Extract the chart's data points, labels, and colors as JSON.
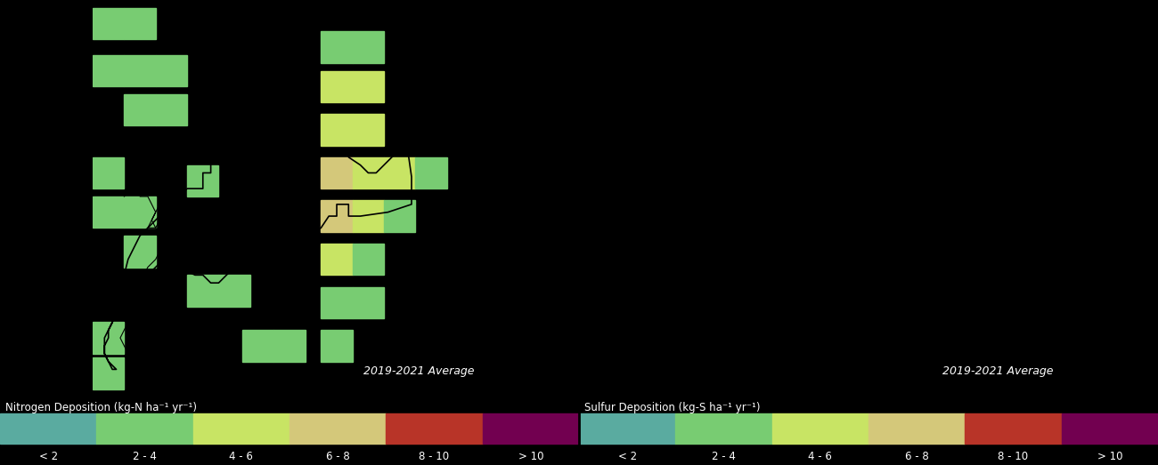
{
  "map_bg": "#5aabA0",
  "figure_bg": "#000000",
  "legend_bg": "#000000",
  "annotation": "2019-2021 Average",
  "annotation_color": "#ffffff",
  "bin_colors": [
    "#5aabA0",
    "#78cc72",
    "#c8e464",
    "#d4c87a",
    "#c8906a",
    "#b83428",
    "#720050"
  ],
  "cb_colors": [
    "#5aabA0",
    "#78cc72",
    "#c8e464",
    "#d4c87a",
    "#c8906a",
    "#b83428",
    "#720050"
  ],
  "cb_labels": [
    "< 2",
    "2 - 4",
    "4 - 6",
    "6 - 8",
    "8 - 10",
    "> 10"
  ],
  "title_left": "Nitrogen Deposition (kg-N ha",
  "title_right": "Sulfur Deposition (kg-S ha",
  "sep_color": "#000000",
  "grid_size": 0.072,
  "nitrogen_cells": [
    [
      0.0,
      0.88,
      0.072,
      0.12,
      1
    ],
    [
      0.072,
      0.88,
      0.072,
      0.12,
      1
    ],
    [
      0.0,
      0.72,
      0.072,
      0.1,
      1
    ],
    [
      0.072,
      0.72,
      0.072,
      0.1,
      1
    ],
    [
      0.072,
      0.62,
      0.04,
      0.1,
      1
    ],
    [
      0.0,
      0.5,
      0.072,
      0.12,
      1
    ],
    [
      0.0,
      0.38,
      0.072,
      0.1,
      1
    ],
    [
      0.072,
      0.38,
      0.072,
      0.1,
      1
    ],
    [
      0.2,
      0.45,
      0.072,
      0.12,
      1
    ],
    [
      0.2,
      0.2,
      0.072,
      0.12,
      1
    ],
    [
      0.3,
      0.2,
      0.072,
      0.1,
      1
    ],
    [
      0.3,
      0.09,
      0.072,
      0.1,
      1
    ],
    [
      0.38,
      0.09,
      0.072,
      0.1,
      1
    ],
    [
      0.46,
      0.09,
      0.072,
      0.1,
      1
    ],
    [
      0.55,
      0.88,
      0.072,
      0.12,
      1
    ],
    [
      0.55,
      0.75,
      0.072,
      0.13,
      2
    ],
    [
      0.55,
      0.6,
      0.072,
      0.15,
      2
    ],
    [
      0.55,
      0.47,
      0.072,
      0.13,
      3
    ],
    [
      0.55,
      0.33,
      0.072,
      0.14,
      2
    ],
    [
      0.55,
      0.2,
      0.072,
      0.13,
      1
    ],
    [
      0.55,
      0.08,
      0.072,
      0.12,
      1
    ],
    [
      0.62,
      0.88,
      0.072,
      0.12,
      1
    ],
    [
      0.62,
      0.75,
      0.072,
      0.13,
      1
    ],
    [
      0.62,
      0.6,
      0.072,
      0.15,
      2
    ],
    [
      0.62,
      0.47,
      0.072,
      0.13,
      2
    ],
    [
      0.62,
      0.33,
      0.072,
      0.14,
      1
    ],
    [
      0.62,
      0.2,
      0.072,
      0.13,
      1
    ],
    [
      0.7,
      0.6,
      0.072,
      0.12,
      1
    ],
    [
      0.7,
      0.45,
      0.072,
      0.12,
      2
    ],
    [
      0.0,
      0.1,
      0.072,
      0.12,
      1
    ]
  ]
}
